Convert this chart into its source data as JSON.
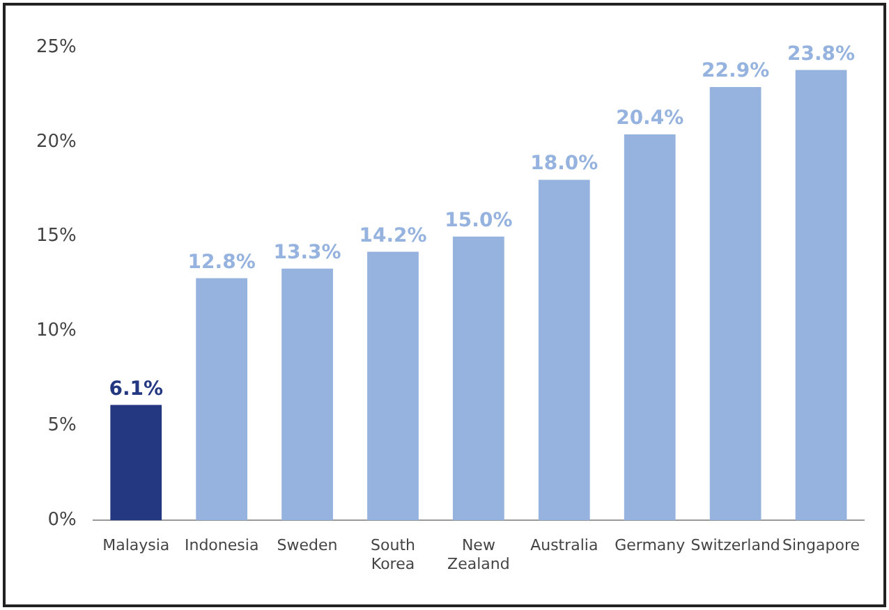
{
  "chart_data": {
    "type": "bar",
    "categories": [
      "Malaysia",
      "Indonesia",
      "Sweden",
      "South Korea",
      "New Zealand",
      "Australia",
      "Germany",
      "Switzerland",
      "Singapore"
    ],
    "values": [
      6.1,
      12.8,
      13.3,
      14.2,
      15.0,
      18.0,
      20.4,
      22.9,
      23.8
    ],
    "colors": [
      "#243781",
      "#95b3de",
      "#95b3de",
      "#95b3de",
      "#95b3de",
      "#95b3de",
      "#95b3de",
      "#95b3de",
      "#95b3de"
    ],
    "value_labels": [
      "6.1%",
      "12.8%",
      "13.3%",
      "14.2%",
      "15.0%",
      "18.0%",
      "20.4%",
      "22.9%",
      "23.8%"
    ],
    "ylim": [
      0,
      25
    ],
    "yticks": [
      {
        "value": 0,
        "label": "0%"
      },
      {
        "value": 5,
        "label": "5%"
      },
      {
        "value": 10,
        "label": "10%"
      },
      {
        "value": 15,
        "label": "15%"
      },
      {
        "value": 20,
        "label": "20%"
      },
      {
        "value": 25,
        "label": "25%"
      }
    ],
    "grid": false,
    "legend": false
  }
}
